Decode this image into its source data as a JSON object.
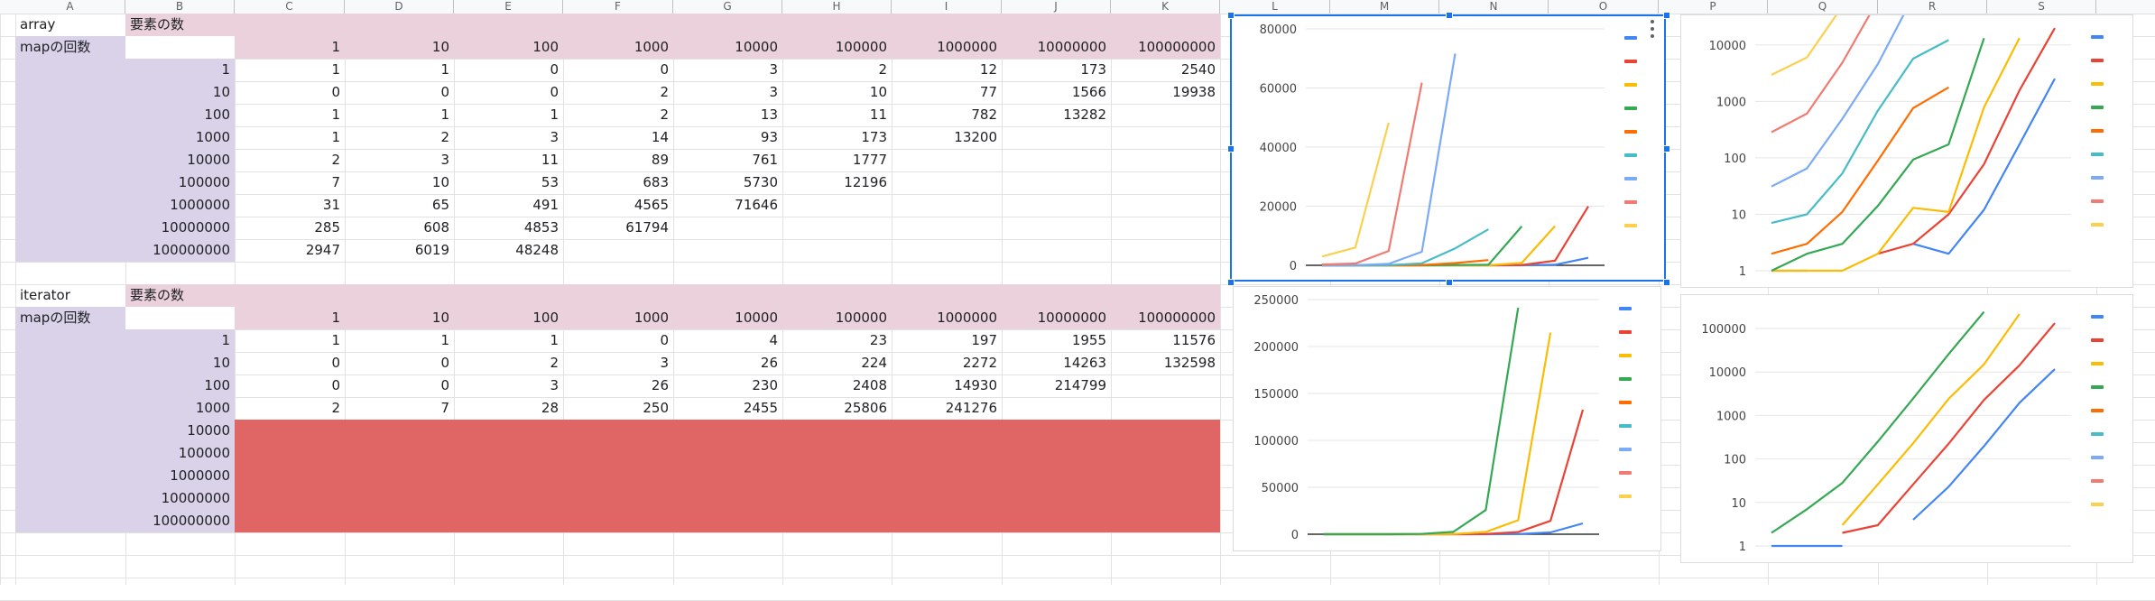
{
  "column_headers": [
    "A",
    "B",
    "C",
    "D",
    "E",
    "F",
    "G",
    "H",
    "I",
    "J",
    "K",
    "L",
    "M",
    "N",
    "O",
    "P",
    "Q",
    "R",
    "S"
  ],
  "tables": [
    {
      "name": "array",
      "title_label": "array",
      "header_label": "要素の数",
      "rows_label": "mapの回数",
      "columns": [
        "1",
        "10",
        "100",
        "1000",
        "10000",
        "100000",
        "1000000",
        "10000000",
        "100000000"
      ],
      "row_labels": [
        "1",
        "10",
        "100",
        "1000",
        "10000",
        "100000",
        "1000000",
        "10000000",
        "100000000"
      ],
      "rows": [
        [
          "1",
          "1",
          "0",
          "0",
          "3",
          "2",
          "12",
          "173",
          "2540"
        ],
        [
          "0",
          "0",
          "0",
          "2",
          "3",
          "10",
          "77",
          "1566",
          "19938"
        ],
        [
          "1",
          "1",
          "1",
          "2",
          "13",
          "11",
          "782",
          "13282",
          ""
        ],
        [
          "1",
          "2",
          "3",
          "14",
          "93",
          "173",
          "13200",
          "",
          ""
        ],
        [
          "2",
          "3",
          "11",
          "89",
          "761",
          "1777",
          "",
          "",
          ""
        ],
        [
          "7",
          "10",
          "53",
          "683",
          "5730",
          "12196",
          "",
          "",
          ""
        ],
        [
          "31",
          "65",
          "491",
          "4565",
          "71646",
          "",
          "",
          "",
          ""
        ],
        [
          "285",
          "608",
          "4853",
          "61794",
          "",
          "",
          "",
          "",
          ""
        ],
        [
          "2947",
          "6019",
          "48248",
          "",
          "",
          "",
          "",
          "",
          ""
        ]
      ]
    },
    {
      "name": "iterator",
      "title_label": "iterator",
      "header_label": "要素の数",
      "rows_label": "mapの回数",
      "columns": [
        "1",
        "10",
        "100",
        "1000",
        "10000",
        "100000",
        "1000000",
        "10000000",
        "100000000"
      ],
      "row_labels": [
        "1",
        "10",
        "100",
        "1000",
        "10000",
        "100000",
        "1000000",
        "10000000",
        "100000000"
      ],
      "rows": [
        [
          "1",
          "1",
          "1",
          "0",
          "4",
          "23",
          "197",
          "1955",
          "11576"
        ],
        [
          "0",
          "0",
          "2",
          "3",
          "26",
          "224",
          "2272",
          "14263",
          "132598"
        ],
        [
          "0",
          "0",
          "3",
          "26",
          "230",
          "2408",
          "14930",
          "214799",
          ""
        ],
        [
          "2",
          "7",
          "28",
          "250",
          "2455",
          "25806",
          "241276",
          "",
          ""
        ],
        [
          "",
          "",
          "",
          "",
          "",
          "",
          "",
          "",
          ""
        ],
        [
          "",
          "",
          "",
          "",
          "",
          "",
          "",
          "",
          ""
        ],
        [
          "",
          "",
          "",
          "",
          "",
          "",
          "",
          "",
          ""
        ],
        [
          "",
          "",
          "",
          "",
          "",
          "",
          "",
          "",
          ""
        ],
        [
          "",
          "",
          "",
          "",
          "",
          "",
          "",
          "",
          ""
        ]
      ]
    }
  ],
  "colors": {
    "lavender": "#d9d2e9",
    "pink": "#ead1dc",
    "red_block": "#e06666",
    "selection": "#1a73e8"
  },
  "series_colors": [
    "#4285f4",
    "#ea4335",
    "#fbbc04",
    "#34a853",
    "#ff6d01",
    "#46bdc6",
    "#7baaf7",
    "#f07b72",
    "#fcd04f"
  ],
  "chart_data": [
    {
      "type": "line",
      "source_table": "array",
      "x": [
        "1",
        "10",
        "100",
        "1000",
        "10000",
        "100000",
        "1000000",
        "10000000",
        "100000000"
      ],
      "y_scale": "linear",
      "ylim": [
        0,
        80000
      ],
      "y_ticks": [
        "0",
        "20000",
        "40000",
        "60000",
        "80000"
      ],
      "grid": true,
      "legend_position": "right",
      "selected": true,
      "series": [
        {
          "values": [
            1,
            1,
            0,
            0,
            3,
            2,
            12,
            173,
            2540
          ]
        },
        {
          "values": [
            0,
            0,
            0,
            2,
            3,
            10,
            77,
            1566,
            19938
          ]
        },
        {
          "values": [
            1,
            1,
            1,
            2,
            13,
            11,
            782,
            13282,
            null
          ]
        },
        {
          "values": [
            1,
            2,
            3,
            14,
            93,
            173,
            13200,
            null,
            null
          ]
        },
        {
          "values": [
            2,
            3,
            11,
            89,
            761,
            1777,
            null,
            null,
            null
          ]
        },
        {
          "values": [
            7,
            10,
            53,
            683,
            5730,
            12196,
            null,
            null,
            null
          ]
        },
        {
          "values": [
            31,
            65,
            491,
            4565,
            71646,
            null,
            null,
            null,
            null
          ]
        },
        {
          "values": [
            285,
            608,
            4853,
            61794,
            null,
            null,
            null,
            null,
            null
          ]
        },
        {
          "values": [
            2947,
            6019,
            48248,
            null,
            null,
            null,
            null,
            null,
            null
          ]
        }
      ]
    },
    {
      "type": "line",
      "source_table": "array",
      "x": [
        "1",
        "10",
        "100",
        "1000",
        "10000",
        "100000",
        "1000000",
        "10000000",
        "100000000"
      ],
      "y_scale": "log",
      "ylim": [
        1,
        20000
      ],
      "y_ticks": [
        "1",
        "10",
        "100",
        "1000",
        "10000"
      ],
      "grid": true,
      "legend_position": "right",
      "selected": false,
      "series": [
        {
          "values": [
            1,
            1,
            0,
            0,
            3,
            2,
            12,
            173,
            2540
          ]
        },
        {
          "values": [
            0,
            0,
            0,
            2,
            3,
            10,
            77,
            1566,
            19938
          ]
        },
        {
          "values": [
            1,
            1,
            1,
            2,
            13,
            11,
            782,
            13282,
            null
          ]
        },
        {
          "values": [
            1,
            2,
            3,
            14,
            93,
            173,
            13200,
            null,
            null
          ]
        },
        {
          "values": [
            2,
            3,
            11,
            89,
            761,
            1777,
            null,
            null,
            null
          ]
        },
        {
          "values": [
            7,
            10,
            53,
            683,
            5730,
            12196,
            null,
            null,
            null
          ]
        },
        {
          "values": [
            31,
            65,
            491,
            4565,
            71646,
            null,
            null,
            null,
            null
          ]
        },
        {
          "values": [
            285,
            608,
            4853,
            61794,
            null,
            null,
            null,
            null,
            null
          ]
        },
        {
          "values": [
            2947,
            6019,
            48248,
            null,
            null,
            null,
            null,
            null,
            null
          ]
        }
      ]
    },
    {
      "type": "line",
      "source_table": "iterator",
      "x": [
        "1",
        "10",
        "100",
        "1000",
        "10000",
        "100000",
        "1000000",
        "10000000",
        "100000000"
      ],
      "y_scale": "linear",
      "ylim": [
        0,
        250000
      ],
      "y_ticks": [
        "0",
        "50000",
        "100000",
        "150000",
        "200000",
        "250000"
      ],
      "grid": true,
      "legend_position": "right",
      "selected": false,
      "series": [
        {
          "values": [
            1,
            1,
            1,
            0,
            4,
            23,
            197,
            1955,
            11576
          ]
        },
        {
          "values": [
            0,
            0,
            2,
            3,
            26,
            224,
            2272,
            14263,
            132598
          ]
        },
        {
          "values": [
            0,
            0,
            3,
            26,
            230,
            2408,
            14930,
            214799,
            null
          ]
        },
        {
          "values": [
            2,
            7,
            28,
            250,
            2455,
            25806,
            241276,
            null,
            null
          ]
        },
        {
          "values": [
            null,
            null,
            null,
            null,
            null,
            null,
            null,
            null,
            null
          ]
        },
        {
          "values": [
            null,
            null,
            null,
            null,
            null,
            null,
            null,
            null,
            null
          ]
        },
        {
          "values": [
            null,
            null,
            null,
            null,
            null,
            null,
            null,
            null,
            null
          ]
        },
        {
          "values": [
            null,
            null,
            null,
            null,
            null,
            null,
            null,
            null,
            null
          ]
        },
        {
          "values": [
            null,
            null,
            null,
            null,
            null,
            null,
            null,
            null,
            null
          ]
        }
      ]
    },
    {
      "type": "line",
      "source_table": "iterator",
      "x": [
        "1",
        "10",
        "100",
        "1000",
        "10000",
        "100000",
        "1000000",
        "10000000",
        "100000000"
      ],
      "y_scale": "log",
      "ylim": [
        1,
        300000
      ],
      "y_ticks": [
        "1",
        "10",
        "100",
        "1000",
        "10000",
        "100000"
      ],
      "grid": true,
      "legend_position": "right",
      "selected": false,
      "series": [
        {
          "values": [
            1,
            1,
            1,
            0,
            4,
            23,
            197,
            1955,
            11576
          ]
        },
        {
          "values": [
            0,
            0,
            2,
            3,
            26,
            224,
            2272,
            14263,
            132598
          ]
        },
        {
          "values": [
            0,
            0,
            3,
            26,
            230,
            2408,
            14930,
            214799,
            null
          ]
        },
        {
          "values": [
            2,
            7,
            28,
            250,
            2455,
            25806,
            241276,
            null,
            null
          ]
        },
        {
          "values": [
            null,
            null,
            null,
            null,
            null,
            null,
            null,
            null,
            null
          ]
        },
        {
          "values": [
            null,
            null,
            null,
            null,
            null,
            null,
            null,
            null,
            null
          ]
        },
        {
          "values": [
            null,
            null,
            null,
            null,
            null,
            null,
            null,
            null,
            null
          ]
        },
        {
          "values": [
            null,
            null,
            null,
            null,
            null,
            null,
            null,
            null,
            null
          ]
        },
        {
          "values": [
            null,
            null,
            null,
            null,
            null,
            null,
            null,
            null,
            null
          ]
        }
      ]
    }
  ]
}
